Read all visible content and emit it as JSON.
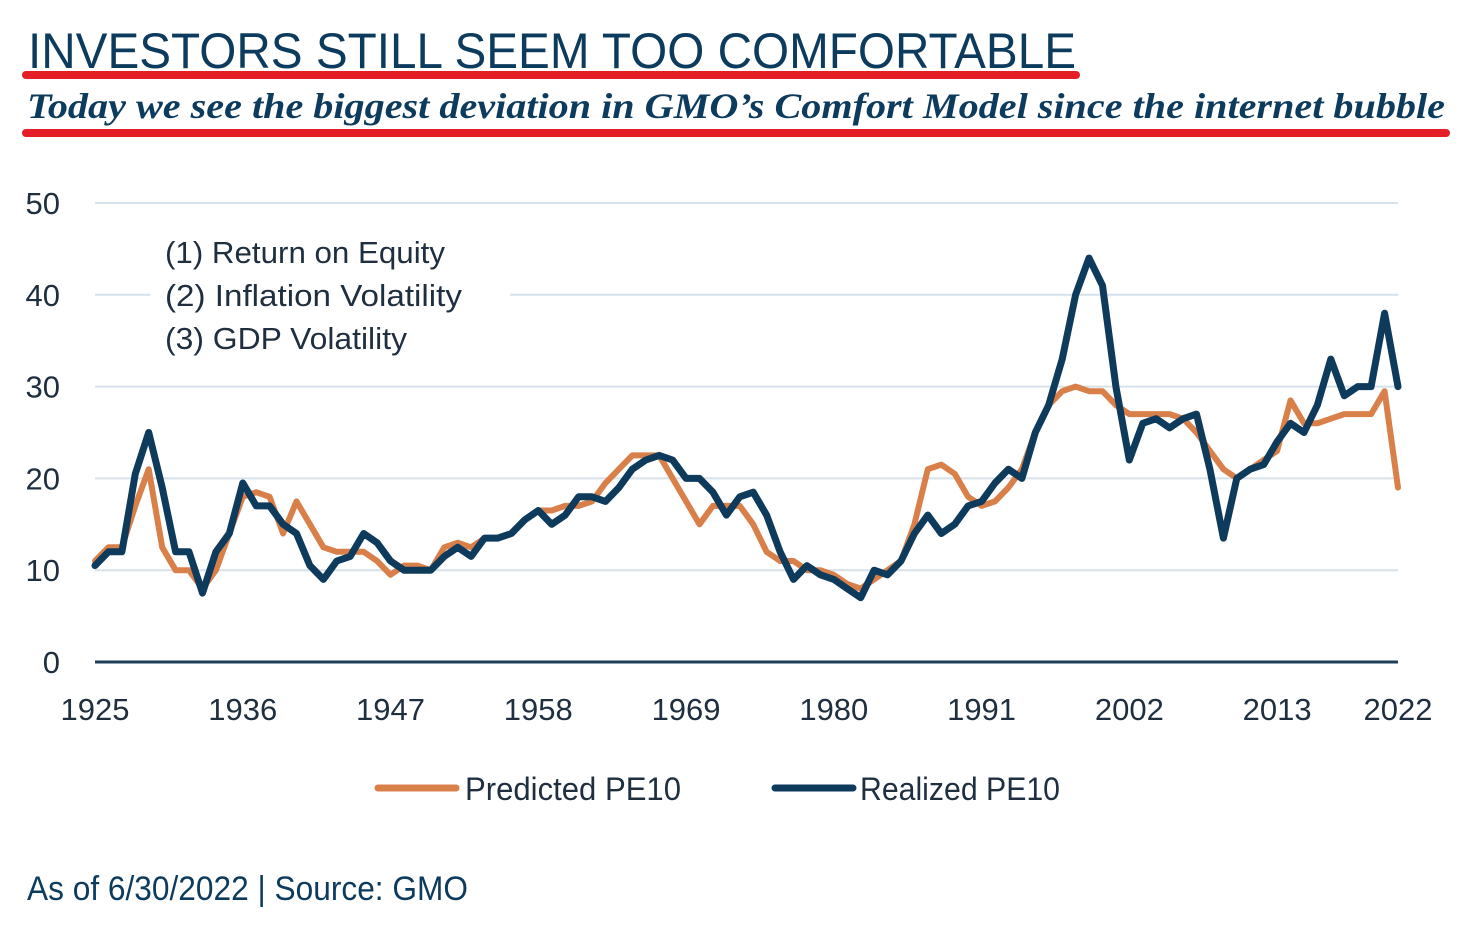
{
  "title": "INVESTORS STILL SEEM TOO COMFORTABLE",
  "subtitle": "Today we see the biggest deviation in GMO’s Comfort Model since the internet bubble",
  "footer": "As of 6/30/2022 | Source: GMO",
  "colors": {
    "title": "#0d3b5e",
    "underline": "#e31e24",
    "predicted": "#d9804a",
    "realized": "#0e3a5c",
    "grid": "#d6e1ea",
    "axis": "#1e3f5a",
    "text": "#1f2f3f"
  },
  "chart_data": {
    "type": "line",
    "title": "",
    "xlabel": "",
    "ylabel": "",
    "xlim": [
      1925,
      2022
    ],
    "ylim": [
      0,
      50
    ],
    "yticks": [
      0,
      10,
      20,
      30,
      40,
      50
    ],
    "xticks": [
      1925,
      1936,
      1947,
      1958,
      1969,
      1980,
      1991,
      2002,
      2013,
      2022
    ],
    "grid": true,
    "annotation": [
      "(1) Return on Equity",
      "(2) Inflation Volatility",
      "(3) GDP Volatility"
    ],
    "legend": {
      "placement": "bottom",
      "entries": [
        "Predicted PE10",
        "Realized PE10"
      ]
    },
    "x": [
      1925,
      1926,
      1927,
      1928,
      1929,
      1930,
      1931,
      1932,
      1933,
      1934,
      1935,
      1936,
      1937,
      1938,
      1939,
      1940,
      1941,
      1942,
      1943,
      1944,
      1945,
      1946,
      1947,
      1948,
      1949,
      1950,
      1951,
      1952,
      1953,
      1954,
      1955,
      1956,
      1957,
      1958,
      1959,
      1960,
      1961,
      1962,
      1963,
      1964,
      1965,
      1966,
      1967,
      1968,
      1969,
      1970,
      1971,
      1972,
      1973,
      1974,
      1975,
      1976,
      1977,
      1978,
      1979,
      1980,
      1981,
      1982,
      1983,
      1984,
      1985,
      1986,
      1987,
      1988,
      1989,
      1990,
      1991,
      1992,
      1993,
      1994,
      1995,
      1996,
      1997,
      1998,
      1999,
      2000,
      2001,
      2002,
      2003,
      2004,
      2005,
      2006,
      2007,
      2008,
      2009,
      2010,
      2011,
      2012,
      2013,
      2014,
      2015,
      2016,
      2017,
      2018,
      2019,
      2020,
      2021,
      2022
    ],
    "series": [
      {
        "name": "Predicted PE10",
        "values": [
          11,
          12.5,
          12.5,
          17,
          21,
          12.5,
          10,
          10,
          8,
          10,
          14,
          18,
          18.5,
          18,
          14,
          17.5,
          15,
          12.5,
          12,
          12,
          12,
          11,
          9.5,
          10.5,
          10.5,
          10,
          12.5,
          13,
          12.5,
          13.5,
          13.5,
          14,
          15.5,
          16.5,
          16.5,
          17,
          17,
          17.5,
          19.5,
          21,
          22.5,
          22.5,
          22.5,
          20,
          17.5,
          15,
          17,
          17,
          17,
          15,
          12,
          11,
          11,
          10,
          10,
          9.5,
          8.5,
          8,
          9,
          10,
          11,
          15,
          21,
          21.5,
          20.5,
          18,
          17,
          17.5,
          19,
          21,
          25,
          28,
          29.5,
          30,
          29.5,
          29.5,
          28,
          27,
          27,
          27,
          27,
          26.5,
          25,
          23,
          21,
          20,
          21,
          22,
          23,
          28.5,
          26,
          26,
          26.5,
          27,
          27,
          27,
          29.5,
          19
        ]
      },
      {
        "name": "Realized PE10",
        "values": [
          10.5,
          12,
          12,
          20.5,
          25,
          19,
          12,
          12,
          7.5,
          12,
          14,
          19.5,
          17,
          17,
          15,
          14,
          10.5,
          9,
          11,
          11.5,
          14,
          13,
          11,
          10,
          10,
          10,
          11.5,
          12.5,
          11.5,
          13.5,
          13.5,
          14,
          15.5,
          16.5,
          15,
          16,
          18,
          18,
          17.5,
          19,
          21,
          22,
          22.5,
          22,
          20,
          20,
          18.5,
          16,
          18,
          18.5,
          16,
          12,
          9,
          10.5,
          9.5,
          9,
          8,
          7,
          10,
          9.5,
          11,
          14,
          16,
          14,
          15,
          17,
          17.5,
          19.5,
          21,
          20,
          25,
          28,
          33,
          40,
          44,
          41,
          30,
          22,
          26,
          26.5,
          25.5,
          26.5,
          27,
          21,
          13.5,
          20,
          21,
          21.5,
          24,
          26,
          25,
          28,
          33,
          29,
          30,
          30,
          38,
          30
        ]
      }
    ]
  }
}
